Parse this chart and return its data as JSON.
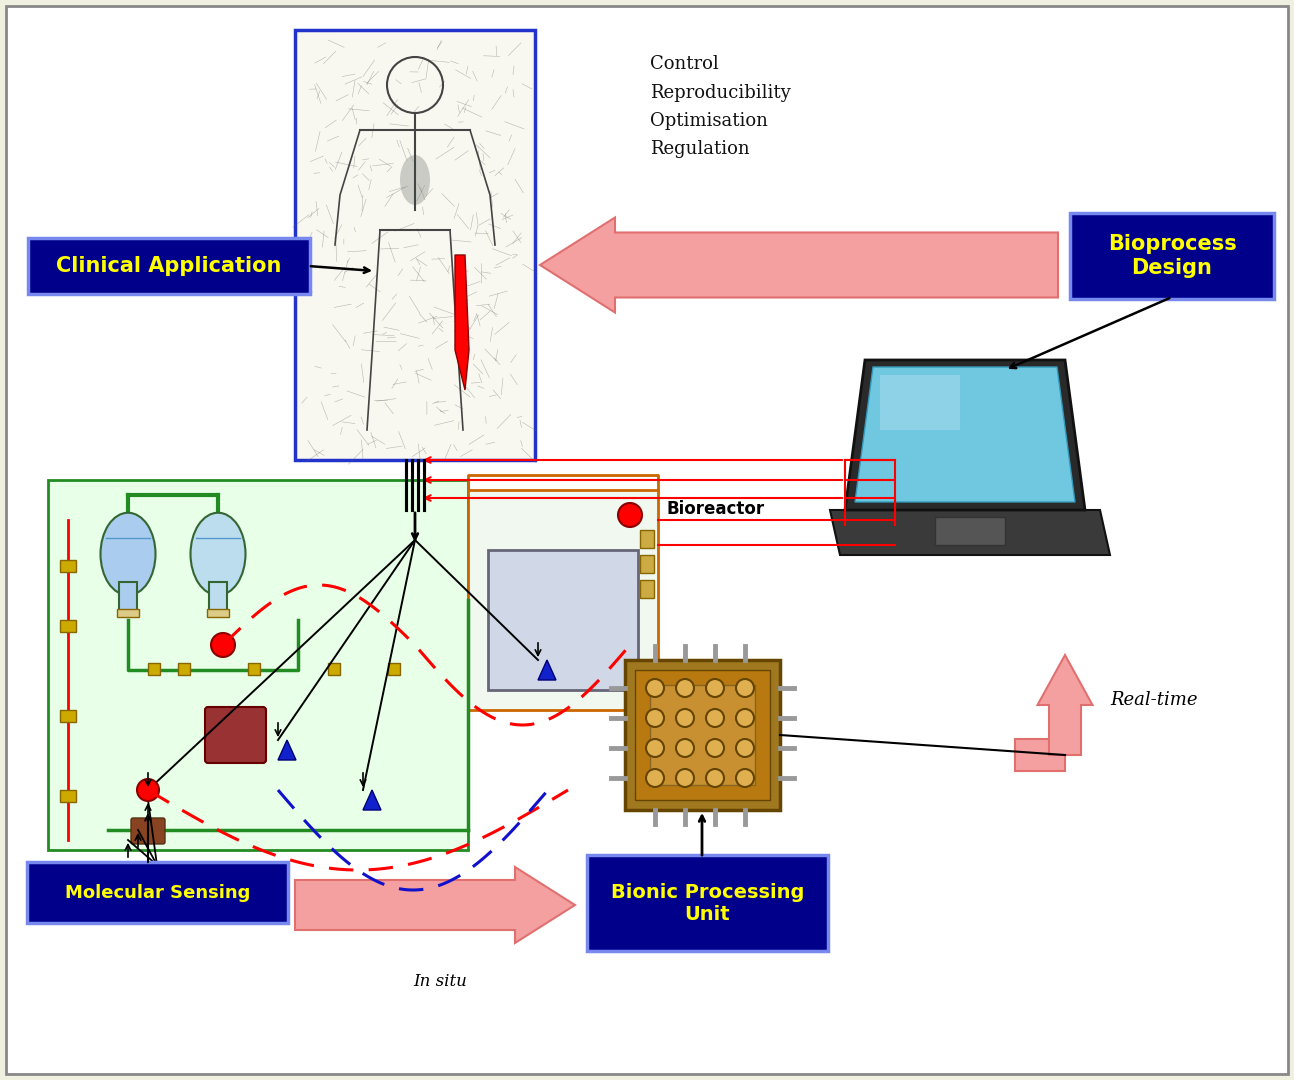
{
  "bg": "#f0f0e0",
  "white": "#ffffff",
  "dark_navy": "#00008B",
  "yellow_text": "#FFFF00",
  "salmon": "#F4A0A0",
  "salmon_dark": "#E07070",
  "red": "#CC0000",
  "green_pipe": "#228B22",
  "orange_pipe": "#CC6600",
  "gray_box": "#888888",
  "labels": {
    "clinical": "Clinical Application",
    "bioprocess": "Bioprocess\nDesign",
    "molecular": "Molecular Sensing",
    "bionic": "Bionic Processing\nUnit",
    "bioreactor": "Bioreactor",
    "control": "Control\nReproducibility\nOptimisation\nRegulation",
    "in_situ": "In situ",
    "real_time": "Real-time"
  }
}
